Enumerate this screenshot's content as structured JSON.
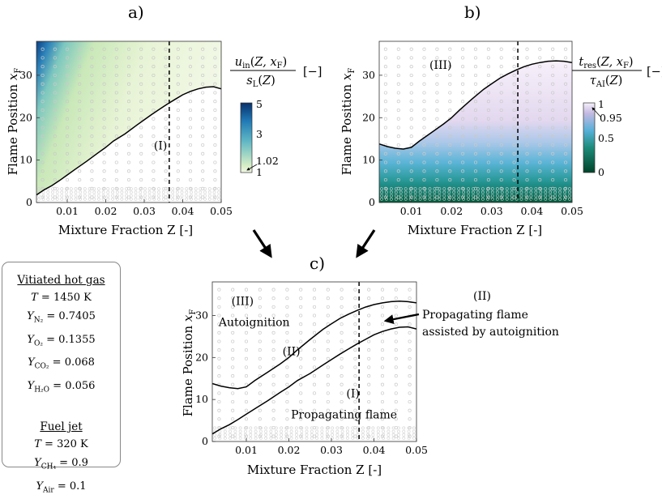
{
  "panels": [
    {
      "id": "a",
      "label": "a)"
    },
    {
      "id": "b",
      "label": "b)"
    },
    {
      "id": "c",
      "label": "c)"
    }
  ],
  "axis_labels": {
    "x": "Mixture Fraction Z  [-]",
    "y": "Flame Position x_F"
  },
  "colorbars": {
    "a": {
      "title_num": "u_in(Z, x_F)",
      "title_den": "s_L(Z)",
      "unit": "[−]",
      "ticks": [
        "5",
        "3",
        "1.02",
        "1"
      ],
      "colors": [
        "#f2f7e6",
        "#c9e8b8",
        "#5fb7c5",
        "#1f78b4",
        "#08306b"
      ]
    },
    "b": {
      "title_num": "t_res(Z, x_F)",
      "title_den": "τ_AI(Z)",
      "unit": "[−]",
      "ticks": [
        "1",
        "0.95",
        "0.5",
        "0"
      ],
      "colors": [
        "#00442a",
        "#1b8a78",
        "#56b0d8",
        "#c4b9e0",
        "#f6f0fa"
      ]
    }
  },
  "chart_data": [
    {
      "panel": "a",
      "type": "line",
      "xlabel": "Mixture Fraction Z  [-]",
      "ylabel": "Flame Position x_F",
      "xlim": [
        0.002,
        0.05
      ],
      "ylim": [
        0,
        38
      ],
      "xticks": [
        0.01,
        0.02,
        0.03,
        0.04,
        0.05
      ],
      "yticks": [
        0,
        10,
        20,
        30
      ],
      "dashed_x": 0.0365,
      "annotations": [
        {
          "text": "(I)",
          "x": 0.0325,
          "y": 12.5
        }
      ],
      "series": [
        {
          "x": [
            0.002,
            0.004,
            0.006,
            0.008,
            0.01,
            0.012,
            0.015,
            0.018,
            0.02,
            0.022,
            0.025,
            0.028,
            0.03,
            0.032,
            0.034,
            0.036,
            0.038,
            0.04,
            0.042,
            0.044,
            0.046,
            0.048,
            0.05
          ],
          "y": [
            1.8,
            3.0,
            4.0,
            5.2,
            6.5,
            7.8,
            9.7,
            11.7,
            13.0,
            14.5,
            16.2,
            18.2,
            19.5,
            20.8,
            22.0,
            23.2,
            24.3,
            25.4,
            26.2,
            26.8,
            27.2,
            27.3,
            26.8
          ]
        }
      ]
    },
    {
      "panel": "b",
      "type": "line",
      "xlabel": "Mixture Fraction Z  [-]",
      "ylabel": "Flame Position x_F",
      "xlim": [
        0.002,
        0.05
      ],
      "ylim": [
        0,
        38
      ],
      "xticks": [
        0.01,
        0.02,
        0.03,
        0.04,
        0.05
      ],
      "yticks": [
        0,
        10,
        20,
        30
      ],
      "dashed_x": 0.0365,
      "annotations": [
        {
          "text": "(III)",
          "x": 0.0145,
          "y": 31.5
        }
      ],
      "series": [
        {
          "x": [
            0.002,
            0.004,
            0.006,
            0.008,
            0.01,
            0.012,
            0.015,
            0.018,
            0.02,
            0.022,
            0.025,
            0.028,
            0.03,
            0.032,
            0.034,
            0.036,
            0.038,
            0.04,
            0.042,
            0.044,
            0.046,
            0.048,
            0.05
          ],
          "y": [
            13.8,
            13.2,
            12.8,
            12.6,
            13.0,
            14.5,
            16.5,
            18.5,
            20.0,
            21.8,
            24.3,
            26.7,
            28.0,
            29.3,
            30.3,
            31.2,
            32.0,
            32.6,
            33.0,
            33.3,
            33.4,
            33.3,
            33.0
          ]
        }
      ]
    },
    {
      "panel": "c",
      "type": "line",
      "xlabel": "Mixture Fraction Z  [-]",
      "ylabel": "Flame Position x_F",
      "xlim": [
        0.002,
        0.05
      ],
      "ylim": [
        0,
        38
      ],
      "xticks": [
        0.01,
        0.02,
        0.03,
        0.04,
        0.05
      ],
      "yticks": [
        0,
        10,
        20,
        30
      ],
      "dashed_x": 0.0365,
      "annotations": [
        {
          "text": "(III)",
          "x": 0.0065,
          "y": 32.5
        },
        {
          "text": "Autoignition",
          "x": 0.0035,
          "y": 27.5
        },
        {
          "text": "(II)",
          "x": 0.0185,
          "y": 20.5
        },
        {
          "text": "(I)",
          "x": 0.0335,
          "y": 10.5
        },
        {
          "text": "Propagating flame",
          "x": 0.0205,
          "y": 5.5
        }
      ],
      "series": [
        {
          "x": [
            0.002,
            0.004,
            0.006,
            0.008,
            0.01,
            0.012,
            0.015,
            0.018,
            0.02,
            0.022,
            0.025,
            0.028,
            0.03,
            0.032,
            0.034,
            0.036,
            0.038,
            0.04,
            0.042,
            0.044,
            0.046,
            0.048,
            0.05
          ],
          "y": [
            13.8,
            13.2,
            12.8,
            12.6,
            13.0,
            14.5,
            16.5,
            18.5,
            20.0,
            21.8,
            24.3,
            26.7,
            28.0,
            29.3,
            30.3,
            31.2,
            32.0,
            32.6,
            33.0,
            33.3,
            33.4,
            33.3,
            33.0
          ]
        },
        {
          "x": [
            0.002,
            0.004,
            0.006,
            0.008,
            0.01,
            0.012,
            0.015,
            0.018,
            0.02,
            0.022,
            0.025,
            0.028,
            0.03,
            0.032,
            0.034,
            0.036,
            0.038,
            0.04,
            0.042,
            0.044,
            0.046,
            0.048,
            0.05
          ],
          "y": [
            1.8,
            3.0,
            4.0,
            5.2,
            6.5,
            7.8,
            9.7,
            11.7,
            13.0,
            14.5,
            16.2,
            18.2,
            19.5,
            20.8,
            22.0,
            23.2,
            24.3,
            25.4,
            26.2,
            26.8,
            27.2,
            27.3,
            26.8
          ]
        }
      ]
    }
  ],
  "callout_c": {
    "label": "(II)",
    "line1": "Propagating flame",
    "line2": "assisted by autoignition"
  },
  "conditions": {
    "hot_title": "Vitiated hot gas",
    "hot": [
      {
        "sym": "T",
        "sub": "",
        "val": "= 1450 K"
      },
      {
        "sym": "Y",
        "sub": "N₂",
        "val": "= 0.7405"
      },
      {
        "sym": "Y",
        "sub": "O₂",
        "val": "= 0.1355"
      },
      {
        "sym": "Y",
        "sub": "CO₂",
        "val": "= 0.068"
      },
      {
        "sym": "Y",
        "sub": "H₂O",
        "val": "= 0.056"
      }
    ],
    "fuel_title": "Fuel jet",
    "fuel": [
      {
        "sym": "T",
        "sub": "",
        "val": "= 320 K"
      },
      {
        "sym": "Y",
        "sub": "CH₄",
        "val": "= 0.9"
      },
      {
        "sym": "Y",
        "sub": "Air",
        "val": "= 0.1"
      }
    ]
  }
}
